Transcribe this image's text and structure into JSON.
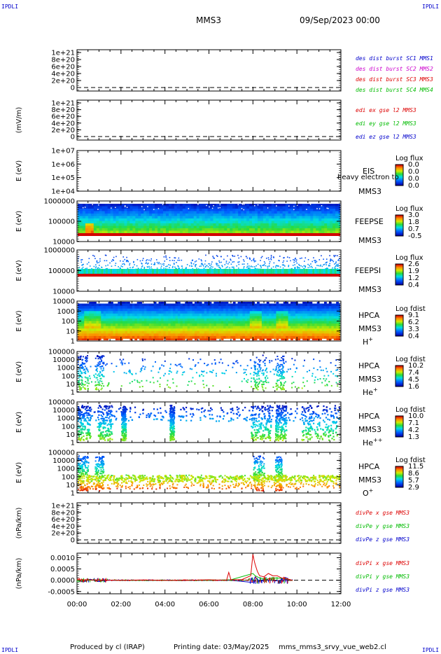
{
  "corner_label": "IPDLI",
  "header": {
    "spacecraft": "MMS3",
    "date": "09/Sep/2023 00:00"
  },
  "footer": {
    "produced_by": "Produced by cl (IRAP)",
    "printing_date": "Printing date: 03/May/2025",
    "script_name": "mms_mms3_srvy_vue_web2.cl"
  },
  "chart_data": [
    {
      "type": "line",
      "id": "p1",
      "ylabel": "",
      "yticks": [
        "1e+21",
        "8e+20",
        "6e+20",
        "4e+20",
        "2e+20",
        "0"
      ],
      "right_labels": [
        {
          "text": "des dist burst SC1 MMS1",
          "color": "#0000cc"
        },
        {
          "text": "des dist burst SC2 MMS2",
          "color": "#cc00cc"
        },
        {
          "text": "des dist burst SC3 MMS3",
          "color": "#dd0000"
        },
        {
          "text": "des dist burst SC4 MMS4",
          "color": "#00bb00"
        }
      ],
      "zero_line": "dashed",
      "series": []
    },
    {
      "type": "line",
      "id": "p2",
      "ylabel": "(mV/m)",
      "yticks": [
        "1e+21",
        "8e+20",
        "6e+20",
        "4e+20",
        "2e+20",
        "0"
      ],
      "right_labels": [
        {
          "text": "edi ex gse l2 MMS3",
          "color": "#dd0000"
        },
        {
          "text": "edi ey gse l2 MMS3",
          "color": "#00bb00"
        },
        {
          "text": "edi ez gse l2 MMS3",
          "color": "#0000cc"
        }
      ],
      "zero_line": "dashed",
      "series": []
    },
    {
      "type": "heatmap",
      "id": "p3",
      "ylabel": "E (eV)",
      "yscale": "log",
      "yticks": [
        "1e+07",
        "1e+06",
        "1e+05",
        "1e+04"
      ],
      "instrument": [
        "EIS",
        "MMS3"
      ],
      "overlay_text": "heavy electron to",
      "colorbar": {
        "title": "Log flux",
        "ticks": [
          "0.0",
          "0.0",
          "0.0",
          "0.0"
        ]
      }
    },
    {
      "type": "heatmap",
      "id": "p4",
      "ylabel": "E (eV)",
      "yscale": "log",
      "yticks": [
        "1000000",
        "100000",
        "10000"
      ],
      "instrument": [
        "FEEPSE",
        "MMS3"
      ],
      "colorbar": {
        "title": "Log flux",
        "ticks": [
          "3.0",
          "1.8",
          "0.7",
          "-0.5"
        ]
      }
    },
    {
      "type": "heatmap",
      "id": "p5",
      "ylabel": "E (eV)",
      "yscale": "log",
      "yticks": [
        "1000000",
        "100000",
        "10000"
      ],
      "instrument": [
        "FEEPSI",
        "MMS3"
      ],
      "colorbar": {
        "title": "Log flux",
        "ticks": [
          "2.6",
          "1.9",
          "1.2",
          "0.4"
        ]
      }
    },
    {
      "type": "heatmap",
      "id": "p6",
      "ylabel": "E (eV)",
      "yscale": "log",
      "yticks": [
        "10000",
        "1000",
        "100",
        "10",
        "1"
      ],
      "instrument": [
        "HPCA",
        "MMS3"
      ],
      "species": "H",
      "charge": "+",
      "colorbar": {
        "title": "Log fdist",
        "ticks": [
          "9.1",
          "6.2",
          "3.3",
          "0.4"
        ]
      }
    },
    {
      "type": "heatmap",
      "id": "p7",
      "ylabel": "E (eV)",
      "yscale": "log",
      "yticks": [
        "100000",
        "10000",
        "1000",
        "100",
        "10",
        "1"
      ],
      "instrument": [
        "HPCA",
        "MMS3"
      ],
      "species": "He",
      "charge": "+",
      "colorbar": {
        "title": "Log fdist",
        "ticks": [
          "10.2",
          "7.4",
          "4.5",
          "1.6"
        ]
      }
    },
    {
      "type": "heatmap",
      "id": "p8",
      "ylabel": "E (eV)",
      "yscale": "log",
      "yticks": [
        "100000",
        "10000",
        "1000",
        "100",
        "10",
        "1"
      ],
      "instrument": [
        "HPCA",
        "MMS3"
      ],
      "species": "He",
      "charge": "++",
      "colorbar": {
        "title": "Log fdist",
        "ticks": [
          "10.0",
          "7.1",
          "4.2",
          "1.3"
        ]
      }
    },
    {
      "type": "heatmap",
      "id": "p9",
      "ylabel": "E (eV)",
      "yscale": "log",
      "yticks": [
        "100000",
        "10000",
        "1000",
        "100",
        "10",
        "1"
      ],
      "instrument": [
        "HPCA",
        "MMS3"
      ],
      "species": "O",
      "charge": "+",
      "colorbar": {
        "title": "Log fdist",
        "ticks": [
          "11.5",
          "8.6",
          "5.7",
          "2.9"
        ]
      }
    },
    {
      "type": "line",
      "id": "p10",
      "ylabel": "(nPa/km)",
      "yticks": [
        "1e+21",
        "8e+20",
        "6e+20",
        "4e+20",
        "2e+20",
        "0"
      ],
      "right_labels": [
        {
          "text": "divPe x gse MMS3",
          "color": "#dd0000"
        },
        {
          "text": "divPe y gse MMS3",
          "color": "#00bb00"
        },
        {
          "text": "divPe z gse MMS3",
          "color": "#0000cc"
        }
      ],
      "zero_line": "dashed",
      "series": []
    },
    {
      "type": "line",
      "id": "p11",
      "ylabel": "(nPa/km)",
      "yticks": [
        "0.0010",
        "0.0005",
        "0.0000",
        "-0.0005"
      ],
      "ylim": [
        -0.0006,
        0.0012
      ],
      "right_labels": [
        {
          "text": "divPi x gse MMS3",
          "color": "#dd0000"
        },
        {
          "text": "divPi y gse MMS3",
          "color": "#00bb00"
        },
        {
          "text": "divPi z gse MMS3",
          "color": "#0000cc"
        }
      ],
      "zero_line": "dashed",
      "series": [
        {
          "name": "divPi x gse MMS3",
          "color": "#dd0000",
          "x": [
            0.0,
            1.0,
            2.0,
            3.0,
            4.0,
            5.0,
            6.0,
            6.8,
            6.9,
            7.0,
            7.5,
            7.9,
            8.0,
            8.05,
            8.1,
            8.2,
            8.3,
            8.5,
            8.7,
            8.9,
            9.1,
            9.3,
            9.5,
            9.8
          ],
          "y": [
            2e-05,
            1e-05,
            0.0,
            1e-05,
            0.0,
            0.0,
            2e-05,
            0.0,
            0.00035,
            2e-05,
            3e-05,
            0.0002,
            0.00115,
            0.0009,
            0.0007,
            0.0004,
            0.0002,
            0.00015,
            0.0003,
            0.0002,
            0.0002,
            0.0001,
            8e-05,
            0.0
          ]
        },
        {
          "name": "divPi y gse MMS3",
          "color": "#00bb00",
          "x": [
            0.0,
            1.0,
            2.0,
            4.0,
            6.0,
            7.0,
            8.0,
            8.1,
            8.3,
            8.6,
            9.0,
            9.4,
            9.8
          ],
          "y": [
            0.0,
            1e-05,
            0.0,
            0.0,
            0.0,
            2e-05,
            0.0003,
            0.0002,
            0.0001,
            5e-05,
            0.0001,
            8e-05,
            0.0
          ]
        },
        {
          "name": "divPi z gse MMS3",
          "color": "#0000cc",
          "x": [
            0.0,
            0.3,
            0.6,
            1.0,
            1.3,
            2.0,
            4.0,
            6.0,
            7.0,
            8.0,
            8.1,
            8.3,
            8.6,
            9.0,
            9.4,
            9.8
          ],
          "y": [
            0.0,
            -8e-05,
            5e-05,
            -6e-05,
            0.0,
            0.0,
            0.0,
            0.0,
            0.0,
            -0.0001,
            0.00015,
            -5e-05,
            2e-05,
            -3e-05,
            2e-05,
            0.0
          ]
        }
      ]
    }
  ],
  "time_axis": {
    "ticks": [
      "00:00",
      "02:00",
      "04:00",
      "06:00",
      "08:00",
      "10:00",
      "12:00"
    ],
    "range_hours": [
      0,
      12
    ]
  }
}
